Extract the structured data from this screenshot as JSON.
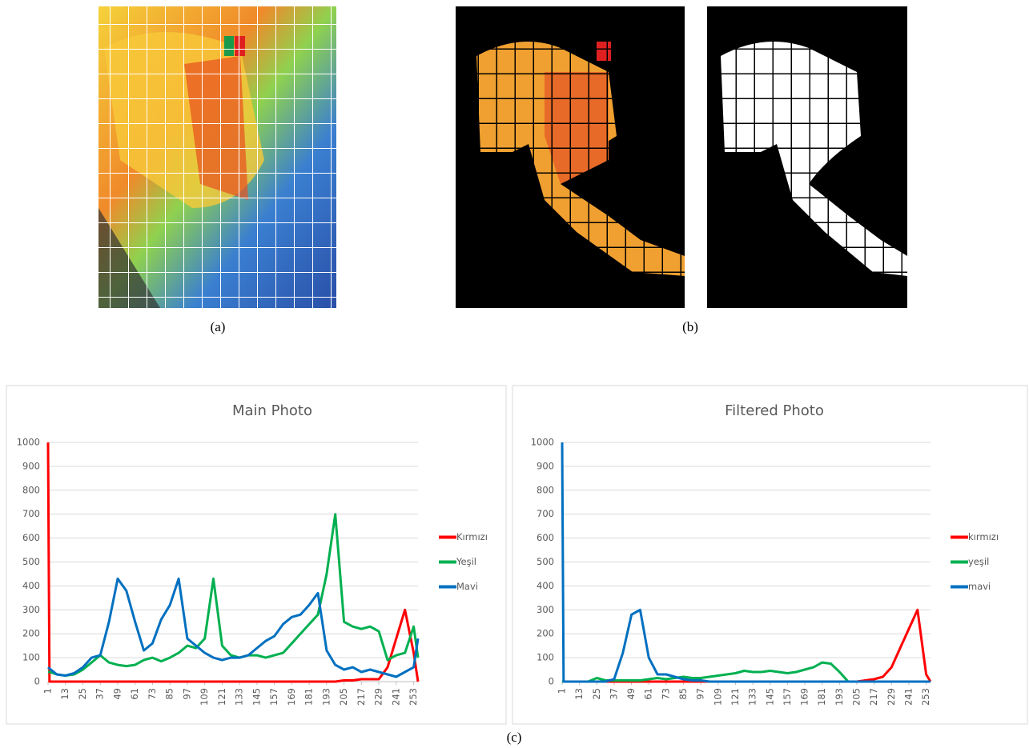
{
  "captions": [
    "(a)",
    "(b)",
    "(c)"
  ],
  "chart_data": [
    {
      "type": "line",
      "title": "Main Photo",
      "x": [
        1,
        2,
        7,
        13,
        19,
        25,
        31,
        37,
        43,
        49,
        55,
        61,
        67,
        73,
        79,
        85,
        91,
        97,
        103,
        109,
        115,
        121,
        127,
        133,
        139,
        145,
        151,
        157,
        163,
        169,
        175,
        181,
        187,
        193,
        199,
        205,
        211,
        217,
        223,
        229,
        235,
        241,
        247,
        253,
        256
      ],
      "xlim": [
        1,
        256
      ],
      "xticks": [
        1,
        13,
        25,
        37,
        49,
        61,
        73,
        85,
        97,
        109,
        121,
        133,
        145,
        157,
        169,
        181,
        193,
        205,
        217,
        229,
        241,
        253
      ],
      "ylim": [
        0,
        1000
      ],
      "yticks": [
        0,
        100,
        200,
        300,
        400,
        500,
        600,
        700,
        800,
        900,
        1000
      ],
      "grid": true,
      "legend": "right",
      "series": [
        {
          "name": "Kırmızı",
          "color": "#ff0000",
          "values": [
            1000,
            0,
            0,
            0,
            0,
            0,
            0,
            0,
            0,
            0,
            0,
            0,
            0,
            0,
            0,
            0,
            0,
            0,
            0,
            0,
            0,
            0,
            0,
            0,
            0,
            0,
            0,
            0,
            0,
            0,
            0,
            0,
            0,
            0,
            0,
            5,
            5,
            10,
            10,
            10,
            60,
            180,
            300,
            120,
            0
          ]
        },
        {
          "name": "Yeşil",
          "color": "#00b050",
          "values": [
            40,
            40,
            30,
            25,
            30,
            50,
            80,
            110,
            80,
            70,
            65,
            70,
            90,
            100,
            85,
            100,
            120,
            150,
            140,
            180,
            430,
            150,
            110,
            100,
            110,
            110,
            100,
            110,
            120,
            160,
            200,
            240,
            280,
            450,
            700,
            250,
            230,
            220,
            230,
            210,
            90,
            110,
            120,
            230,
            100
          ]
        },
        {
          "name": "Mavi",
          "color": "#0070c0",
          "values": [
            60,
            55,
            30,
            25,
            35,
            60,
            100,
            110,
            250,
            430,
            380,
            250,
            130,
            160,
            260,
            320,
            430,
            180,
            150,
            120,
            100,
            90,
            100,
            100,
            110,
            140,
            170,
            190,
            240,
            270,
            280,
            320,
            370,
            130,
            70,
            50,
            60,
            40,
            50,
            40,
            30,
            20,
            40,
            60,
            180
          ]
        }
      ]
    },
    {
      "type": "line",
      "title": "Filtered Photo",
      "x": [
        1,
        2,
        7,
        13,
        19,
        25,
        31,
        37,
        43,
        49,
        55,
        61,
        67,
        73,
        79,
        85,
        91,
        97,
        103,
        109,
        115,
        121,
        127,
        133,
        139,
        145,
        151,
        157,
        163,
        169,
        175,
        181,
        187,
        193,
        199,
        205,
        211,
        217,
        223,
        229,
        235,
        241,
        247,
        253,
        256
      ],
      "xlim": [
        1,
        256
      ],
      "xticks": [
        1,
        13,
        25,
        37,
        49,
        61,
        73,
        85,
        97,
        109,
        121,
        133,
        145,
        157,
        169,
        181,
        193,
        205,
        217,
        229,
        241,
        253
      ],
      "ylim": [
        0,
        1000
      ],
      "yticks": [
        0,
        100,
        200,
        300,
        400,
        500,
        600,
        700,
        800,
        900,
        1000
      ],
      "grid": true,
      "legend": "right",
      "series": [
        {
          "name": "kırmızı",
          "color": "#ff0000",
          "values": [
            0,
            0,
            0,
            0,
            0,
            0,
            0,
            0,
            0,
            0,
            0,
            0,
            0,
            0,
            0,
            0,
            0,
            0,
            0,
            0,
            0,
            0,
            0,
            0,
            0,
            0,
            0,
            0,
            0,
            0,
            0,
            0,
            0,
            0,
            0,
            0,
            5,
            10,
            20,
            60,
            140,
            220,
            300,
            30,
            0
          ]
        },
        {
          "name": "yeşil",
          "color": "#00b050",
          "values": [
            0,
            0,
            0,
            0,
            0,
            15,
            5,
            5,
            5,
            5,
            5,
            10,
            15,
            10,
            15,
            20,
            15,
            15,
            20,
            25,
            30,
            35,
            45,
            40,
            40,
            45,
            40,
            35,
            40,
            50,
            60,
            80,
            75,
            40,
            0,
            0,
            0,
            0,
            0,
            0,
            0,
            0,
            0,
            0,
            0
          ]
        },
        {
          "name": "mavi",
          "color": "#0070c0",
          "values": [
            1000,
            0,
            0,
            0,
            0,
            0,
            0,
            10,
            120,
            280,
            300,
            100,
            30,
            30,
            20,
            10,
            5,
            5,
            0,
            0,
            0,
            0,
            0,
            0,
            0,
            0,
            0,
            0,
            0,
            0,
            0,
            0,
            0,
            0,
            0,
            0,
            0,
            0,
            0,
            0,
            0,
            0,
            0,
            0,
            0
          ]
        }
      ]
    }
  ]
}
